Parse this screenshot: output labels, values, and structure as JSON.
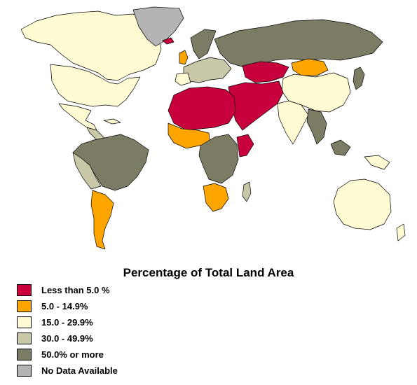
{
  "title": "Percentage of Total Land Area",
  "colors": {
    "c1": "#c8003c",
    "c2": "#ffa500",
    "c3": "#fffbd2",
    "c4": "#c8c8a8",
    "c5": "#7c7c64",
    "c6": "#b4b4b4"
  },
  "legend": [
    {
      "label": "Less than 5.0 %",
      "color": "#c8003c"
    },
    {
      "label": "5.0 - 14.9%",
      "color": "#ffa500"
    },
    {
      "label": "15.0 - 29.9%",
      "color": "#fffbd2"
    },
    {
      "label": "30.0 - 49.9%",
      "color": "#c8c8a8"
    },
    {
      "label": "50.0% or more",
      "color": "#7c7c64"
    },
    {
      "label": "No Data Available",
      "color": "#b4b4b4"
    }
  ]
}
